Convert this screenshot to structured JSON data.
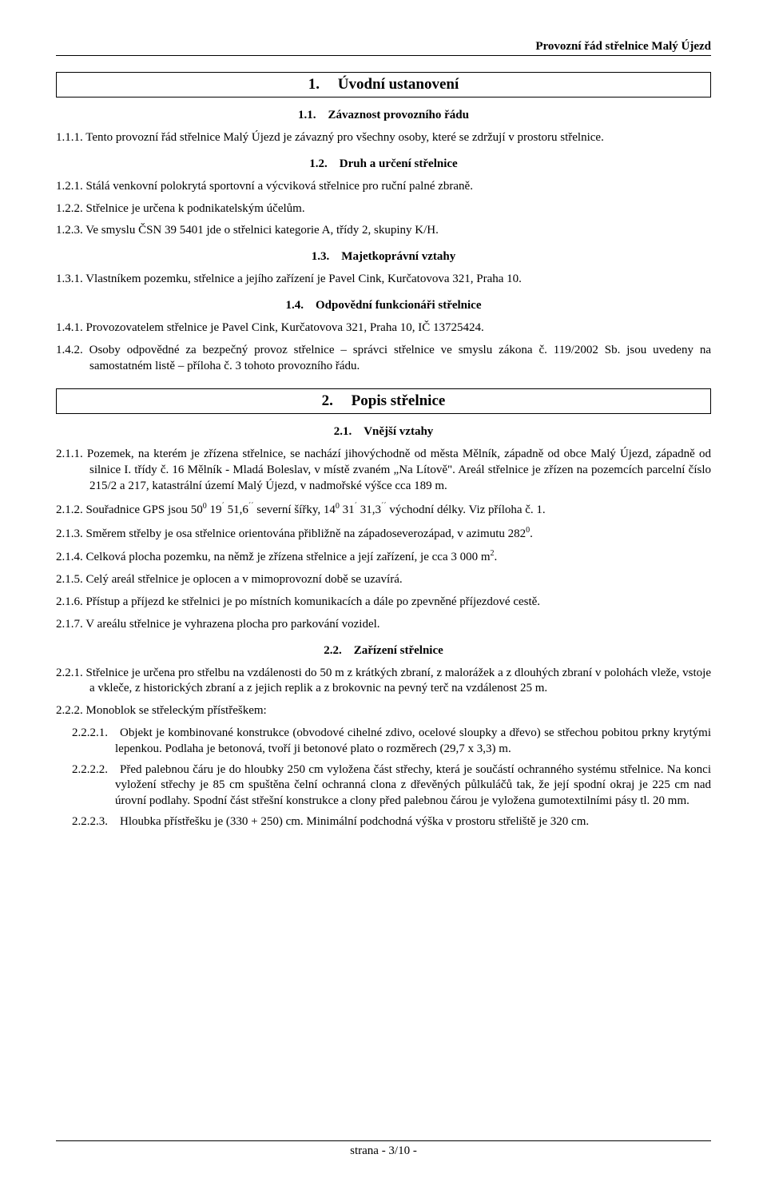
{
  "header": {
    "title": "Provozní řád střelnice Malý Újezd"
  },
  "s1": {
    "num": "1.",
    "title": "Úvodní ustanovení",
    "s11": {
      "num": "1.1.",
      "title": "Závaznost provozního řádu",
      "p111": "1.1.1. Tento provozní řád střelnice Malý Újezd je závazný pro všechny osoby, které se zdržují v prostoru střelnice."
    },
    "s12": {
      "num": "1.2.",
      "title": "Druh a určení střelnice",
      "p121": "1.2.1. Stálá venkovní polokrytá sportovní a výcviková střelnice pro ruční palné zbraně.",
      "p122": "1.2.2. Střelnice je určena k podnikatelským účelům.",
      "p123": "1.2.3. Ve smyslu ČSN 39 5401 jde o střelnici kategorie A, třídy 2, skupiny K/H."
    },
    "s13": {
      "num": "1.3.",
      "title": "Majetkoprávní vztahy",
      "p131": "1.3.1. Vlastníkem pozemku, střelnice a jejího zařízení je Pavel Cink, Kurčatovova 321, Praha 10."
    },
    "s14": {
      "num": "1.4.",
      "title": "Odpovědní funkcionáři střelnice",
      "p141": "1.4.1. Provozovatelem střelnice je Pavel Cink, Kurčatovova 321, Praha 10, IČ 13725424.",
      "p142": "1.4.2. Osoby odpovědné za bezpečný provoz střelnice – správci střelnice ve smyslu zákona č. 119/2002 Sb. jsou uvedeny na samostatném listě – příloha č. 3 tohoto provozního řádu."
    }
  },
  "s2": {
    "num": "2.",
    "title": "Popis střelnice",
    "s21": {
      "num": "2.1.",
      "title": "Vnější vztahy",
      "p211": "2.1.1. Pozemek, na kterém je zřízena střelnice, se nachází jihovýchodně od města Mělník, západně od obce Malý Újezd, západně od silnice I. třídy č. 16 Mělník - Mladá Boleslav, v místě zvaném „Na Lítově\". Areál střelnice je zřízen na pozemcích parcelní číslo 215/2 a 217, katastrální území Malý Újezd, v nadmořské výšce cca 189 m.",
      "p212_a": "2.1.2. Souřadnice GPS jsou 50",
      "p212_b": " 19",
      "p212_c": " 51,6",
      "p212_d": " severní šířky, 14",
      "p212_e": " 31",
      "p212_f": " 31,3",
      "p212_g": " východní délky. Viz příloha č. 1.",
      "p213_a": "2.1.3. Směrem střelby je osa střelnice orientována přibližně na západoseverozápad, v azimutu 282",
      "p213_b": ".",
      "p214_a": "2.1.4. Celková plocha pozemku, na němž je zřízena střelnice a její zařízení, je cca 3 000 m",
      "p214_b": ".",
      "p215": "2.1.5. Celý areál střelnice je oplocen a v mimoprovozní době se uzavírá.",
      "p216": "2.1.6. Přístup a příjezd ke střelnici je po místních komunikacích a dále po zpevněné příjezdové cestě.",
      "p217": "2.1.7. V areálu střelnice je vyhrazena plocha pro parkování vozidel."
    },
    "s22": {
      "num": "2.2.",
      "title": "Zařízení střelnice",
      "p221": "2.2.1. Střelnice je určena pro střelbu na vzdálenosti do 50 m z krátkých zbraní, z malorážek a z dlouhých zbraní v polohách vleže, vstoje a vkleče, z historických zbraní a z jejich replik a z brokovnic na pevný terč na vzdálenost 25 m.",
      "p222": "2.2.2. Monoblok se střeleckým přístřeškem:",
      "p2221": "2.2.2.1. Objekt je kombinované konstrukce (obvodové cihelné zdivo, ocelové sloupky a dřevo) se střechou pobitou prkny krytými lepenkou. Podlaha je betonová, tvoří ji betonové plato o rozměrech (29,7 x 3,3) m.",
      "p2222": "2.2.2.2. Před palebnou čáru je do hloubky 250 cm vyložena část střechy, která je součástí ochranného systému střelnice. Na konci vyložení střechy je 85 cm spuštěna čelní ochranná clona z dřevěných půlkuláčů tak, že její spodní okraj je 225 cm nad úrovní podlahy. Spodní část střešní konstrukce a clony před palebnou čárou je vyložena gumotextilními pásy tl. 20 mm.",
      "p2223": "2.2.2.3. Hloubka přístřešku je (330 + 250) cm. Minimální podchodná výška v prostoru střeliště je 320 cm."
    }
  },
  "footer": {
    "text": "strana - 3/10 -"
  },
  "sup": {
    "deg0": "0",
    "min": "´",
    "sec": "´´",
    "sq2": "2"
  }
}
